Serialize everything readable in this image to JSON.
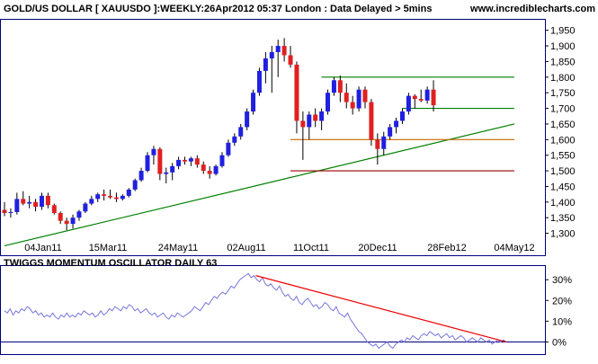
{
  "header": {
    "title": "GOLD/US DOLLAR [ XAUUSDO ]:WEEKLY:26Apr2012 05:37 London : Data Delayed > 5mins",
    "site": "www.incrediblecharts.com"
  },
  "colors": {
    "background": "#ffffff",
    "panel_border": "#000080",
    "grid": "#c0c0c0",
    "up_candle": "#2020e0",
    "down_candle": "#e02020",
    "wick": "#000000",
    "trend_green": "#008000",
    "support_orange": "#cc6600",
    "support_red": "#990000",
    "oscillator_line": "#7777dd",
    "oscillator_zero": "#000080",
    "oscillator_trend": "#ee0000",
    "site_text": "#000080"
  },
  "chart_data": [
    {
      "type": "candlestick",
      "series_name": "GOLD/US DOLLAR [ XAUUSDO ] Weekly",
      "x_tick_labels": [
        "04Jan11",
        "15Mar11",
        "24May11",
        "02Aug11",
        "11Oct11",
        "20Dec11",
        "28Feb12",
        "04May12"
      ],
      "y_tick_labels": [
        "1,300",
        "1,350",
        "1,400",
        "1,450",
        "1,500",
        "1,550",
        "1,600",
        "1,650",
        "1,700",
        "1,750",
        "1,800",
        "1,850",
        "1,900",
        "1,950"
      ],
      "ylim": [
        1270,
        1975
      ],
      "x_range_weeks": [
        0,
        71
      ],
      "grid": false,
      "note_candles": "approximate weekly open/high/low/close values read from the chart; week 0 = 04Jan11",
      "candles": [
        {
          "w": 0,
          "o": 1375,
          "h": 1400,
          "l": 1355,
          "c": 1365
        },
        {
          "w": 1,
          "o": 1365,
          "h": 1380,
          "l": 1350,
          "c": 1368
        },
        {
          "w": 2,
          "o": 1368,
          "h": 1430,
          "l": 1360,
          "c": 1410
        },
        {
          "w": 3,
          "o": 1410,
          "h": 1435,
          "l": 1390,
          "c": 1395
        },
        {
          "w": 4,
          "o": 1395,
          "h": 1420,
          "l": 1380,
          "c": 1400
        },
        {
          "w": 5,
          "o": 1400,
          "h": 1410,
          "l": 1370,
          "c": 1385
        },
        {
          "w": 6,
          "o": 1385,
          "h": 1430,
          "l": 1375,
          "c": 1420
        },
        {
          "w": 7,
          "o": 1420,
          "h": 1430,
          "l": 1380,
          "c": 1390
        },
        {
          "w": 8,
          "o": 1390,
          "h": 1395,
          "l": 1360,
          "c": 1365
        },
        {
          "w": 9,
          "o": 1365,
          "h": 1370,
          "l": 1330,
          "c": 1340
        },
        {
          "w": 10,
          "o": 1340,
          "h": 1350,
          "l": 1310,
          "c": 1330
        },
        {
          "w": 11,
          "o": 1330,
          "h": 1360,
          "l": 1315,
          "c": 1350
        },
        {
          "w": 12,
          "o": 1350,
          "h": 1375,
          "l": 1340,
          "c": 1370
        },
        {
          "w": 13,
          "o": 1370,
          "h": 1400,
          "l": 1365,
          "c": 1395
        },
        {
          "w": 14,
          "o": 1395,
          "h": 1420,
          "l": 1390,
          "c": 1410
        },
        {
          "w": 15,
          "o": 1410,
          "h": 1430,
          "l": 1400,
          "c": 1425
        },
        {
          "w": 16,
          "o": 1425,
          "h": 1440,
          "l": 1405,
          "c": 1420
        },
        {
          "w": 17,
          "o": 1420,
          "h": 1440,
          "l": 1410,
          "c": 1415
        },
        {
          "w": 18,
          "o": 1415,
          "h": 1430,
          "l": 1400,
          "c": 1410
        },
        {
          "w": 19,
          "o": 1410,
          "h": 1425,
          "l": 1405,
          "c": 1420
        },
        {
          "w": 20,
          "o": 1420,
          "h": 1445,
          "l": 1415,
          "c": 1440
        },
        {
          "w": 21,
          "o": 1440,
          "h": 1475,
          "l": 1435,
          "c": 1470
        },
        {
          "w": 22,
          "o": 1470,
          "h": 1510,
          "l": 1465,
          "c": 1500
        },
        {
          "w": 23,
          "o": 1500,
          "h": 1560,
          "l": 1495,
          "c": 1550
        },
        {
          "w": 24,
          "o": 1550,
          "h": 1580,
          "l": 1520,
          "c": 1570
        },
        {
          "w": 25,
          "o": 1570,
          "h": 1575,
          "l": 1470,
          "c": 1490
        },
        {
          "w": 26,
          "o": 1490,
          "h": 1510,
          "l": 1460,
          "c": 1495
        },
        {
          "w": 27,
          "o": 1495,
          "h": 1525,
          "l": 1470,
          "c": 1515
        },
        {
          "w": 28,
          "o": 1515,
          "h": 1545,
          "l": 1505,
          "c": 1535
        },
        {
          "w": 29,
          "o": 1535,
          "h": 1545,
          "l": 1520,
          "c": 1530
        },
        {
          "w": 30,
          "o": 1530,
          "h": 1545,
          "l": 1515,
          "c": 1540
        },
        {
          "w": 31,
          "o": 1540,
          "h": 1550,
          "l": 1510,
          "c": 1520
        },
        {
          "w": 32,
          "o": 1520,
          "h": 1530,
          "l": 1490,
          "c": 1500
        },
        {
          "w": 33,
          "o": 1500,
          "h": 1515,
          "l": 1475,
          "c": 1490
        },
        {
          "w": 34,
          "o": 1490,
          "h": 1520,
          "l": 1485,
          "c": 1515
        },
        {
          "w": 35,
          "o": 1515,
          "h": 1560,
          "l": 1510,
          "c": 1550
        },
        {
          "w": 36,
          "o": 1550,
          "h": 1600,
          "l": 1545,
          "c": 1590
        },
        {
          "w": 37,
          "o": 1590,
          "h": 1620,
          "l": 1580,
          "c": 1610
        },
        {
          "w": 38,
          "o": 1610,
          "h": 1650,
          "l": 1600,
          "c": 1640
        },
        {
          "w": 39,
          "o": 1640,
          "h": 1700,
          "l": 1630,
          "c": 1690
        },
        {
          "w": 40,
          "o": 1690,
          "h": 1760,
          "l": 1680,
          "c": 1750
        },
        {
          "w": 41,
          "o": 1750,
          "h": 1830,
          "l": 1740,
          "c": 1820
        },
        {
          "w": 42,
          "o": 1820,
          "h": 1880,
          "l": 1780,
          "c": 1860
        },
        {
          "w": 43,
          "o": 1860,
          "h": 1900,
          "l": 1750,
          "c": 1880
        },
        {
          "w": 44,
          "o": 1880,
          "h": 1920,
          "l": 1800,
          "c": 1900
        },
        {
          "w": 45,
          "o": 1900,
          "h": 1925,
          "l": 1850,
          "c": 1870
        },
        {
          "w": 46,
          "o": 1870,
          "h": 1900,
          "l": 1830,
          "c": 1840
        },
        {
          "w": 47,
          "o": 1840,
          "h": 1850,
          "l": 1620,
          "c": 1660
        },
        {
          "w": 48,
          "o": 1660,
          "h": 1690,
          "l": 1535,
          "c": 1640
        },
        {
          "w": 49,
          "o": 1640,
          "h": 1690,
          "l": 1600,
          "c": 1680
        },
        {
          "w": 50,
          "o": 1680,
          "h": 1700,
          "l": 1640,
          "c": 1660
        },
        {
          "w": 51,
          "o": 1660,
          "h": 1700,
          "l": 1630,
          "c": 1690
        },
        {
          "w": 52,
          "o": 1690,
          "h": 1760,
          "l": 1680,
          "c": 1750
        },
        {
          "w": 53,
          "o": 1750,
          "h": 1800,
          "l": 1740,
          "c": 1790
        },
        {
          "w": 54,
          "o": 1790,
          "h": 1805,
          "l": 1720,
          "c": 1750
        },
        {
          "w": 55,
          "o": 1750,
          "h": 1780,
          "l": 1700,
          "c": 1720
        },
        {
          "w": 56,
          "o": 1720,
          "h": 1740,
          "l": 1680,
          "c": 1700
        },
        {
          "w": 57,
          "o": 1700,
          "h": 1770,
          "l": 1690,
          "c": 1760
        },
        {
          "w": 58,
          "o": 1760,
          "h": 1770,
          "l": 1700,
          "c": 1720
        },
        {
          "w": 59,
          "o": 1720,
          "h": 1730,
          "l": 1580,
          "c": 1600
        },
        {
          "w": 60,
          "o": 1600,
          "h": 1620,
          "l": 1520,
          "c": 1570
        },
        {
          "w": 61,
          "o": 1570,
          "h": 1625,
          "l": 1550,
          "c": 1610
        },
        {
          "w": 62,
          "o": 1610,
          "h": 1650,
          "l": 1600,
          "c": 1640
        },
        {
          "w": 63,
          "o": 1640,
          "h": 1670,
          "l": 1620,
          "c": 1660
        },
        {
          "w": 64,
          "o": 1660,
          "h": 1700,
          "l": 1650,
          "c": 1690
        },
        {
          "w": 65,
          "o": 1690,
          "h": 1750,
          "l": 1680,
          "c": 1740
        },
        {
          "w": 66,
          "o": 1740,
          "h": 1745,
          "l": 1700,
          "c": 1730
        },
        {
          "w": 67,
          "o": 1730,
          "h": 1760,
          "l": 1720,
          "c": 1725
        },
        {
          "w": 68,
          "o": 1725,
          "h": 1770,
          "l": 1715,
          "c": 1760
        },
        {
          "w": 69,
          "o": 1760,
          "h": 1790,
          "l": 1690,
          "c": 1710
        }
      ],
      "trend_lines": [
        {
          "name": "rising-trendline",
          "color": "trend_green",
          "x1": 0,
          "y1": 1260,
          "x2": 82,
          "y2": 1650
        },
        {
          "name": "resistance-1800",
          "color": "trend_green",
          "x1": 51,
          "y1": 1800,
          "x2": 82,
          "y2": 1800
        },
        {
          "name": "resistance-1700",
          "color": "trend_green",
          "x1": 64,
          "y1": 1700,
          "x2": 82,
          "y2": 1700
        },
        {
          "name": "support-1600",
          "color": "support_orange",
          "x1": 46,
          "y1": 1600,
          "x2": 82,
          "y2": 1600
        },
        {
          "name": "support-1500",
          "color": "support_red",
          "x1": 46,
          "y1": 1500,
          "x2": 82,
          "y2": 1500
        }
      ]
    },
    {
      "type": "line",
      "title": "TWIGGS MOMENTUM OSCILLATOR DAILY 63",
      "y_tick_labels": [
        "0%",
        "10%",
        "20%",
        "30%"
      ],
      "ylim": [
        -5,
        34
      ],
      "x_range_days": [
        0,
        555
      ],
      "note_values": "approximate daily oscillator values in percent read from the chart",
      "values": [
        15,
        14,
        16,
        13,
        15,
        14,
        16,
        15,
        17,
        16,
        14,
        15,
        13,
        14,
        12,
        13,
        12,
        14,
        12,
        11,
        13,
        12,
        14,
        12,
        13,
        12,
        14,
        13,
        15,
        14,
        13,
        14,
        12,
        13,
        15,
        13,
        14,
        16,
        15,
        17,
        16,
        15,
        17,
        16,
        18,
        17,
        15,
        16,
        14,
        15,
        16,
        14,
        13,
        14,
        12,
        13,
        14,
        12,
        11,
        13,
        12,
        14,
        13,
        12,
        13,
        14,
        15,
        17,
        16,
        15,
        17,
        19,
        18,
        20,
        22,
        21,
        23,
        24,
        23,
        25,
        27,
        26,
        28,
        30,
        31,
        32,
        33,
        31,
        32,
        30,
        29,
        31,
        28,
        27,
        28,
        26,
        25,
        27,
        24,
        22,
        23,
        21,
        20,
        22,
        19,
        18,
        20,
        21,
        19,
        17,
        18,
        16,
        17,
        19,
        18,
        16,
        15,
        17,
        14,
        13,
        12,
        14,
        11,
        9,
        7,
        5,
        4,
        2,
        0,
        -1,
        -2,
        -1,
        -3,
        -2,
        -1,
        0,
        -2,
        -3,
        -1,
        0,
        1,
        0,
        2,
        1,
        3,
        2,
        1,
        3,
        4,
        3,
        5,
        4,
        3,
        4,
        2,
        3,
        4,
        2,
        3,
        1,
        2,
        3,
        2,
        0,
        1,
        2,
        1,
        0,
        2,
        1,
        0,
        1,
        -1,
        0,
        1,
        0,
        1,
        0
      ],
      "zero_line": 0,
      "trend_line": {
        "name": "oscillator-trendline",
        "color": "oscillator_trend",
        "x1": 278,
        "y1": 32,
        "x2": 555,
        "y2": 0
      }
    }
  ]
}
